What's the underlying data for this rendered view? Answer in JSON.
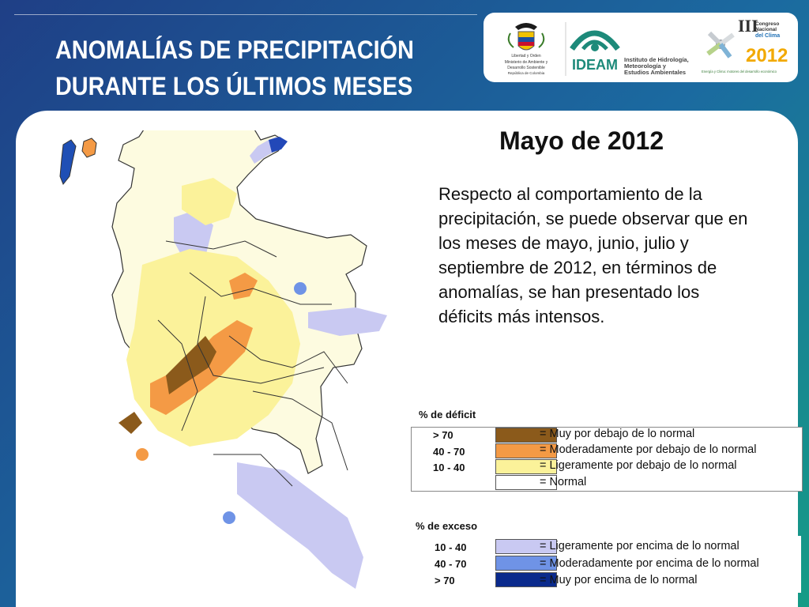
{
  "header": {
    "title_line1": "ANOMALÍAS DE PRECIPITACIÓN",
    "title_line2": "DURANTE LOS ÚLTIMOS MESES"
  },
  "logos": {
    "ministerio": [
      "Libertad y Orden",
      "Ministerio de Ambiente y",
      "Desarrollo Sostenible",
      "República de Colombia"
    ],
    "ideam_name": "IDEAM",
    "ideam_text": [
      "Instituto de Hidrología,",
      "Meteorología y",
      "Estudios Ambientales"
    ],
    "congreso_text": [
      "Congreso",
      "Nacional",
      "del Clima",
      "2012"
    ],
    "congreso_tagline": "Energía y Clima: motores del desarrollo económico"
  },
  "main": {
    "heading": "Mayo de 2012",
    "paragraph": "Respecto al comportamiento de la precipitación, se puede observar que en los meses de mayo, junio, julio y septiembre de 2012, en términos de anomalías, se han presentado los déficits más intensos."
  },
  "legend": {
    "deficit_title": "% de déficit",
    "deficit_items": [
      {
        "range": "> 70",
        "color": "#8b5a1b",
        "label": "= Muy por debajo de lo normal"
      },
      {
        "range": "40 -  70",
        "color": "#f49a45",
        "label": "= Moderadamente por debajo de lo normal"
      },
      {
        "range": "10 -  40",
        "color": "#fbf29a",
        "label": "= Ligeramente por debajo de lo normal"
      },
      {
        "range": "",
        "color": "#ffffff",
        "label": "= Normal"
      }
    ],
    "excess_title": "% de exceso",
    "excess_items": [
      {
        "range": "10 -  40",
        "color": "#c9c9f2",
        "label": "= Ligeramente por encima de lo normal"
      },
      {
        "range": "40 -  70",
        "color": "#6f93e6",
        "label": "= Moderadamente por encima de lo normal"
      },
      {
        "range": "> 70",
        "color": "#0a2a8c",
        "label": "= Muy por encima de lo normal"
      }
    ]
  },
  "colors": {
    "very_below": "#8b5a1b",
    "moderately_below": "#f49a45",
    "slightly_below": "#fbf29a",
    "normal": "#ffffff",
    "slightly_above": "#c9c9f2",
    "moderately_above": "#6f93e6",
    "very_above": "#0a2a8c"
  }
}
